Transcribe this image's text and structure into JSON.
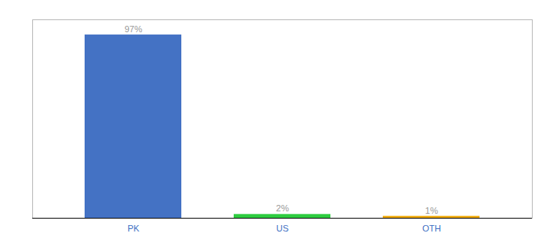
{
  "chart_data": {
    "type": "bar",
    "categories": [
      "PK",
      "US",
      "OTH"
    ],
    "values": [
      97,
      2,
      1
    ],
    "value_labels": [
      "97%",
      "2%",
      "1%"
    ],
    "colors": [
      "#4472c4",
      "#2ecc40",
      "#f0a800"
    ],
    "ylim": [
      0,
      105
    ],
    "grid": false,
    "data_labels": true,
    "tick_labels": "x"
  }
}
